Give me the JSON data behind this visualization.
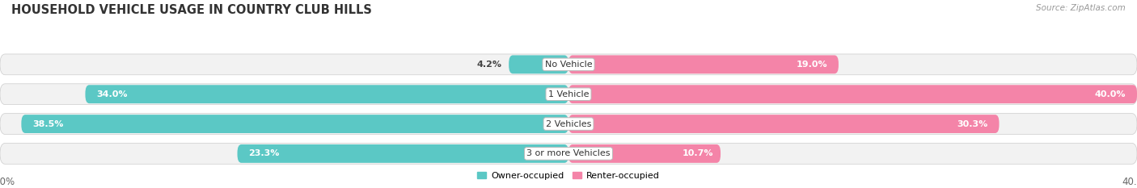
{
  "title": "HOUSEHOLD VEHICLE USAGE IN COUNTRY CLUB HILLS",
  "source": "Source: ZipAtlas.com",
  "categories": [
    "No Vehicle",
    "1 Vehicle",
    "2 Vehicles",
    "3 or more Vehicles"
  ],
  "owner_values": [
    4.2,
    34.0,
    38.5,
    23.3
  ],
  "renter_values": [
    19.0,
    40.0,
    30.3,
    10.7
  ],
  "owner_color": "#5bc8c5",
  "renter_color": "#f484a8",
  "bar_bg_color": "#e8e8e8",
  "bar_height": 0.62,
  "max_val": 40.0,
  "legend_owner": "Owner-occupied",
  "legend_renter": "Renter-occupied",
  "title_fontsize": 10.5,
  "label_fontsize": 8.0,
  "category_fontsize": 8.0,
  "axis_tick_fontsize": 8.5,
  "background_color": "#ffffff",
  "row_bg_color": "#f2f2f2"
}
